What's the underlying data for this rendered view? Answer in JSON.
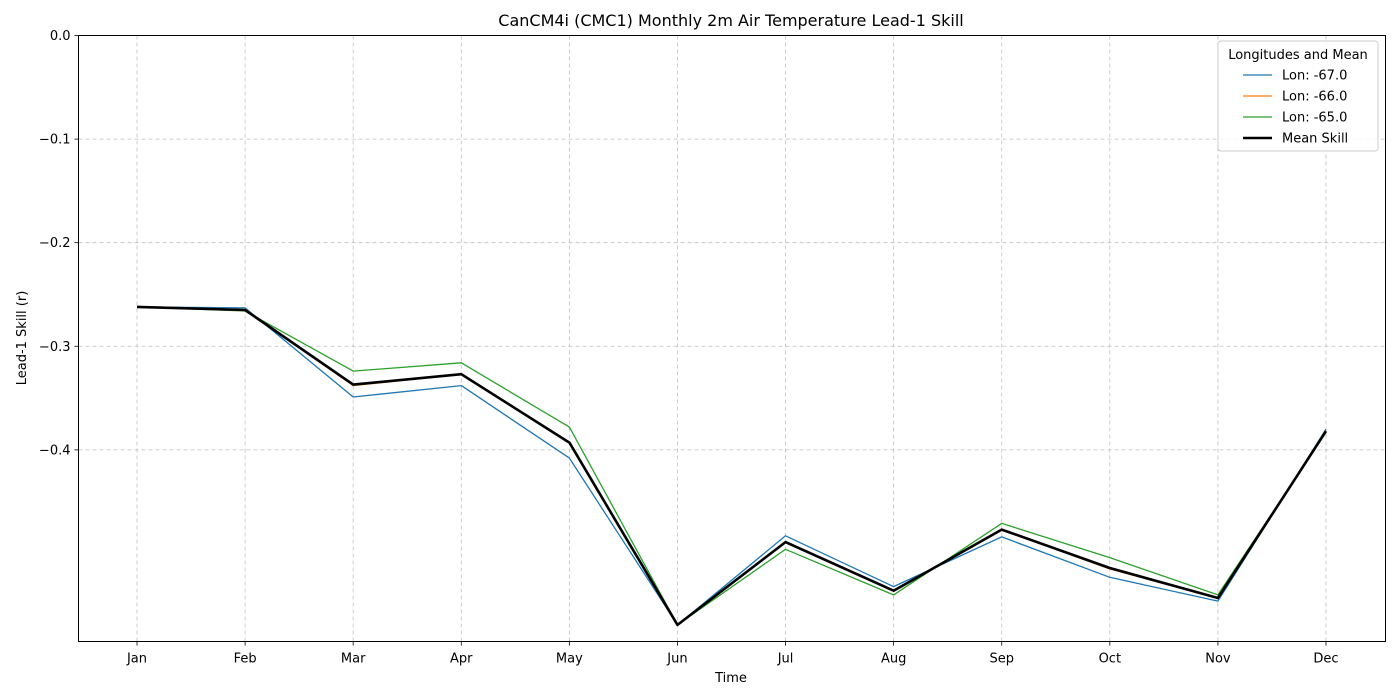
{
  "chart_data": {
    "type": "line",
    "title": "CanCM4i (CMC1) Monthly 2m Air Temperature Lead-1 Skill",
    "xlabel": "Time",
    "ylabel": "Lead-1 Skill (r)",
    "categories": [
      "Jan",
      "Feb",
      "Mar",
      "Apr",
      "May",
      "Jun",
      "Jul",
      "Aug",
      "Sep",
      "Oct",
      "Nov",
      "Dec"
    ],
    "ylim": [
      -0.585,
      0.0
    ],
    "yticks": [
      0.0,
      -0.1,
      -0.2,
      -0.3,
      -0.4
    ],
    "ytick_labels": [
      "0.0",
      "−0.1",
      "−0.2",
      "−0.3",
      "−0.4"
    ],
    "grid": true,
    "legend": {
      "title": "Longitudes and Mean",
      "position": "top-right"
    },
    "series": [
      {
        "name": "Lon: -67.0",
        "color": "#1f77b4",
        "values": [
          -0.262,
          -0.263,
          -0.349,
          -0.338,
          -0.408,
          -0.569,
          -0.483,
          -0.532,
          -0.484,
          -0.523,
          -0.546,
          -0.38
        ]
      },
      {
        "name": "Lon: -66.0",
        "color": "#ff7f0e",
        "values": [
          -0.262,
          -0.265,
          -0.338,
          -0.327,
          -0.393,
          -0.569,
          -0.489,
          -0.536,
          -0.477,
          -0.515,
          -0.543,
          -0.382
        ]
      },
      {
        "name": "Lon: -65.0",
        "color": "#2ca02c",
        "values": [
          -0.262,
          -0.266,
          -0.324,
          -0.316,
          -0.378,
          -0.569,
          -0.496,
          -0.54,
          -0.471,
          -0.504,
          -0.54,
          -0.383
        ]
      },
      {
        "name": "Mean Skill",
        "color": "#000000",
        "values": [
          -0.262,
          -0.265,
          -0.337,
          -0.327,
          -0.393,
          -0.569,
          -0.489,
          -0.536,
          -0.477,
          -0.514,
          -0.543,
          -0.382
        ]
      }
    ]
  }
}
